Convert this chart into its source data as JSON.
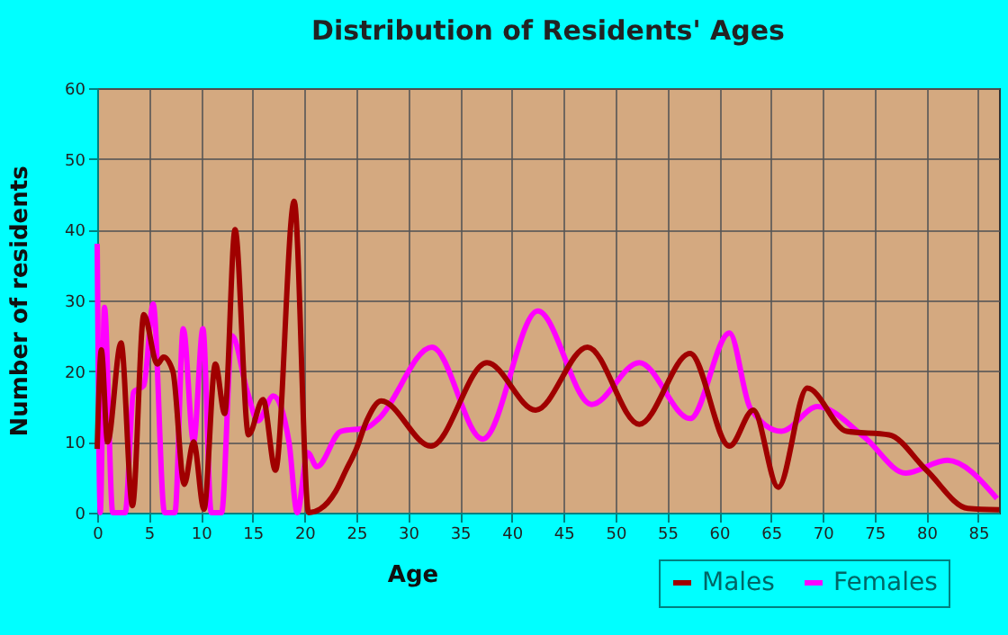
{
  "chart_data": {
    "type": "line",
    "title": "Distribution of Residents' Ages",
    "xlabel": "Age",
    "ylabel": "Number of residents",
    "xlim": [
      0,
      87
    ],
    "xticks": [
      0,
      5,
      10,
      15,
      20,
      25,
      30,
      35,
      40,
      45,
      50,
      55,
      60,
      65,
      70,
      75,
      80,
      85
    ],
    "ylim": [
      0,
      60
    ],
    "yticks": [
      0,
      10,
      20,
      30,
      40,
      50,
      60
    ],
    "grid": true,
    "legend": "bottom right",
    "series": [
      {
        "name": "Males",
        "color": "#a00000",
        "x": [
          0,
          0.4,
          1,
          2.3,
          3.4,
          4.5,
          5.8,
          6.4,
          7.3,
          8.4,
          9.3,
          10.3,
          11.4,
          12.3,
          13.3,
          14.6,
          16,
          17.2,
          19,
          20.4,
          21.5,
          23,
          24,
          25,
          26,
          27.4,
          32.2,
          37.6,
          42.3,
          47.3,
          52.3,
          57.2,
          61,
          63.3,
          65.7,
          68.5,
          72.3,
          76.4,
          80,
          84,
          87
        ],
        "values": [
          9,
          23,
          10,
          24,
          1,
          28,
          21,
          22,
          20,
          4,
          10,
          0.5,
          21,
          14,
          40,
          11,
          16,
          6,
          44,
          0,
          0.5,
          3,
          6,
          9,
          13,
          15.8,
          9.4,
          21.2,
          14.5,
          23.4,
          12.5,
          22.5,
          9.4,
          14.5,
          3.6,
          17.6,
          11.5,
          11,
          6,
          0.6,
          0.4
        ]
      },
      {
        "name": "Females",
        "color": "#ff00ff",
        "x": [
          0,
          0.3,
          0.7,
          1.5,
          2.7,
          3.5,
          4.5,
          5.4,
          6.5,
          7.5,
          8.3,
          9.3,
          10.2,
          11,
          12,
          13,
          14.5,
          15.5,
          17,
          18.5,
          19.3,
          20.3,
          21.2,
          23.5,
          26,
          27.1,
          32.3,
          37.2,
          42.5,
          47.7,
          52.3,
          57.2,
          61,
          63,
          66,
          69.5,
          74,
          78,
          82,
          86.8
        ],
        "values": [
          38,
          0,
          29,
          0,
          0,
          17,
          18,
          29.5,
          0,
          0,
          26,
          10,
          26,
          0,
          0,
          25,
          17,
          13,
          16.5,
          10,
          0,
          8.5,
          6.5,
          11.5,
          12,
          13.2,
          23.4,
          10.4,
          28.5,
          15.3,
          21.2,
          13.3,
          25.4,
          14.8,
          11.5,
          15,
          10.7,
          5.6,
          7.4,
          2
        ]
      }
    ]
  }
}
